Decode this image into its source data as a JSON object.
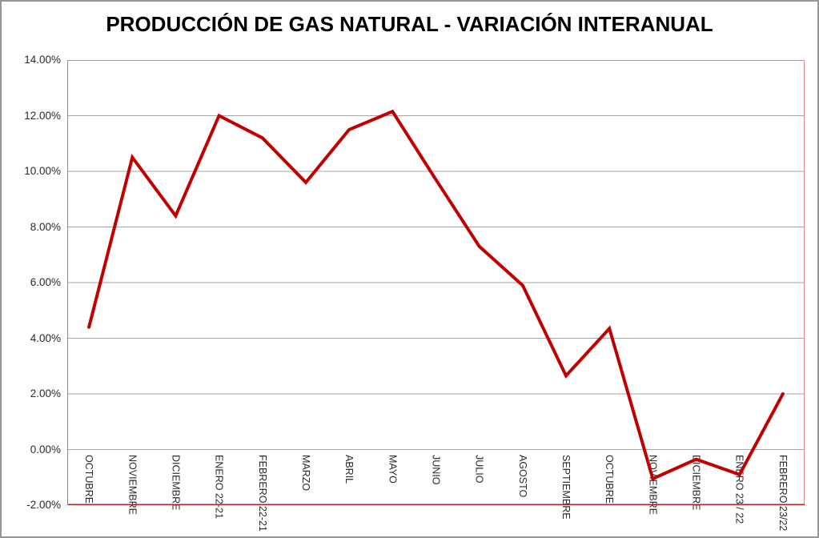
{
  "chart_data": {
    "type": "line",
    "title": "PRODUCCIÓN DE GAS NATURAL - VARIACIÓN INTERANUAL",
    "categories": [
      "OCTUBRE",
      "NOVIEMBRE",
      "DICIEMBRE",
      "ENERO 22-21",
      "FEBRERO 22-21",
      "MARZO",
      "ABRIL",
      "MAYO",
      "JUNIO",
      "JULIO",
      "AGOSTO",
      "SEPTIEMBRE",
      "OCTUBRE",
      "NOVIEMBRE",
      "DICIEMBRE",
      "ENERO 23 / 22",
      "FEBRERO 23/22"
    ],
    "values": [
      4.4,
      10.5,
      8.4,
      12.0,
      11.2,
      9.6,
      11.5,
      12.15,
      9.7,
      7.3,
      5.9,
      2.65,
      4.35,
      -1.05,
      -0.35,
      -0.9,
      2.0
    ],
    "values_unit": "%",
    "xlabel": "",
    "ylabel": "",
    "ylim": [
      -2,
      14
    ],
    "y_tick_step": 2,
    "y_tick_labels": [
      "14.00%",
      "12.00%",
      "10.00%",
      "8.00%",
      "6.00%",
      "4.00%",
      "2.00%",
      "0.00%",
      "-2.00%"
    ],
    "grid": true,
    "legend": false,
    "colors": {
      "series_line": "#C00000",
      "gridline": "#A6A6A6",
      "plot_border_top_right": "#E88585",
      "plot_border_bottom": "#B22424",
      "plot_border_left": "#8C8C8C",
      "outer_border": "#969696",
      "text": "#2B2B2B",
      "title_text": "#000000",
      "background": "#FFFFFF"
    }
  }
}
